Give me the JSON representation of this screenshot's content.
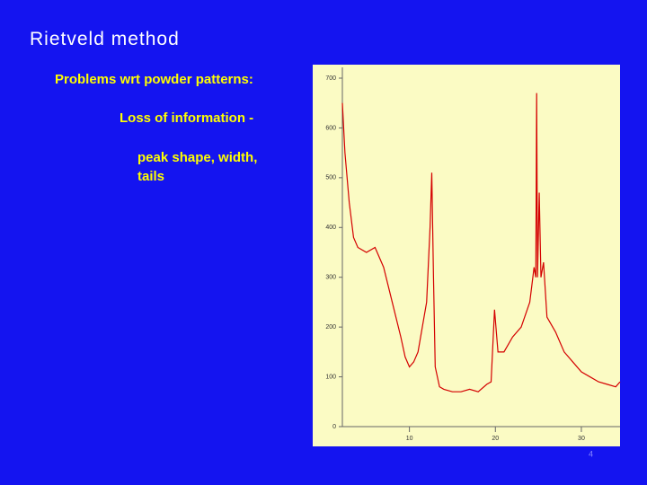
{
  "slide": {
    "title": "Rietveld method",
    "bullet": "Problems wrt powder patterns:",
    "sub_bullet": "Loss of information -",
    "sub_sub_bullet": [
      "peak shape, width,",
      "tails"
    ],
    "page_number": "4"
  },
  "chart_data": {
    "type": "line",
    "color": "#d40000",
    "x": [
      2.2,
      2.5,
      3,
      3.5,
      4,
      5,
      6,
      7,
      8,
      9,
      9.5,
      10,
      10.5,
      11,
      11.5,
      12,
      12.4,
      12.6,
      12.8,
      13,
      13.5,
      14,
      15,
      16,
      17,
      18,
      19,
      19.5,
      19.9,
      20.3,
      20.6,
      21,
      22,
      23,
      24,
      24.5,
      24.7,
      24.8,
      24.9,
      25.1,
      25.3,
      25.6,
      26,
      27,
      28,
      29,
      30,
      31,
      32,
      33,
      34,
      34.5
    ],
    "values": [
      650,
      550,
      450,
      380,
      360,
      350,
      360,
      320,
      250,
      180,
      140,
      120,
      130,
      150,
      200,
      250,
      400,
      510,
      300,
      120,
      80,
      75,
      70,
      70,
      75,
      70,
      85,
      90,
      235,
      150,
      150,
      150,
      180,
      200,
      250,
      320,
      300,
      670,
      300,
      470,
      300,
      330,
      220,
      190,
      150,
      130,
      110,
      100,
      90,
      85,
      80,
      90
    ],
    "xlim": [
      2.2,
      34.5
    ],
    "xticks": [
      10,
      20,
      30
    ],
    "ylim": [
      0,
      700
    ],
    "yticks": [
      0,
      100,
      200,
      300,
      400,
      500,
      600,
      700
    ]
  }
}
